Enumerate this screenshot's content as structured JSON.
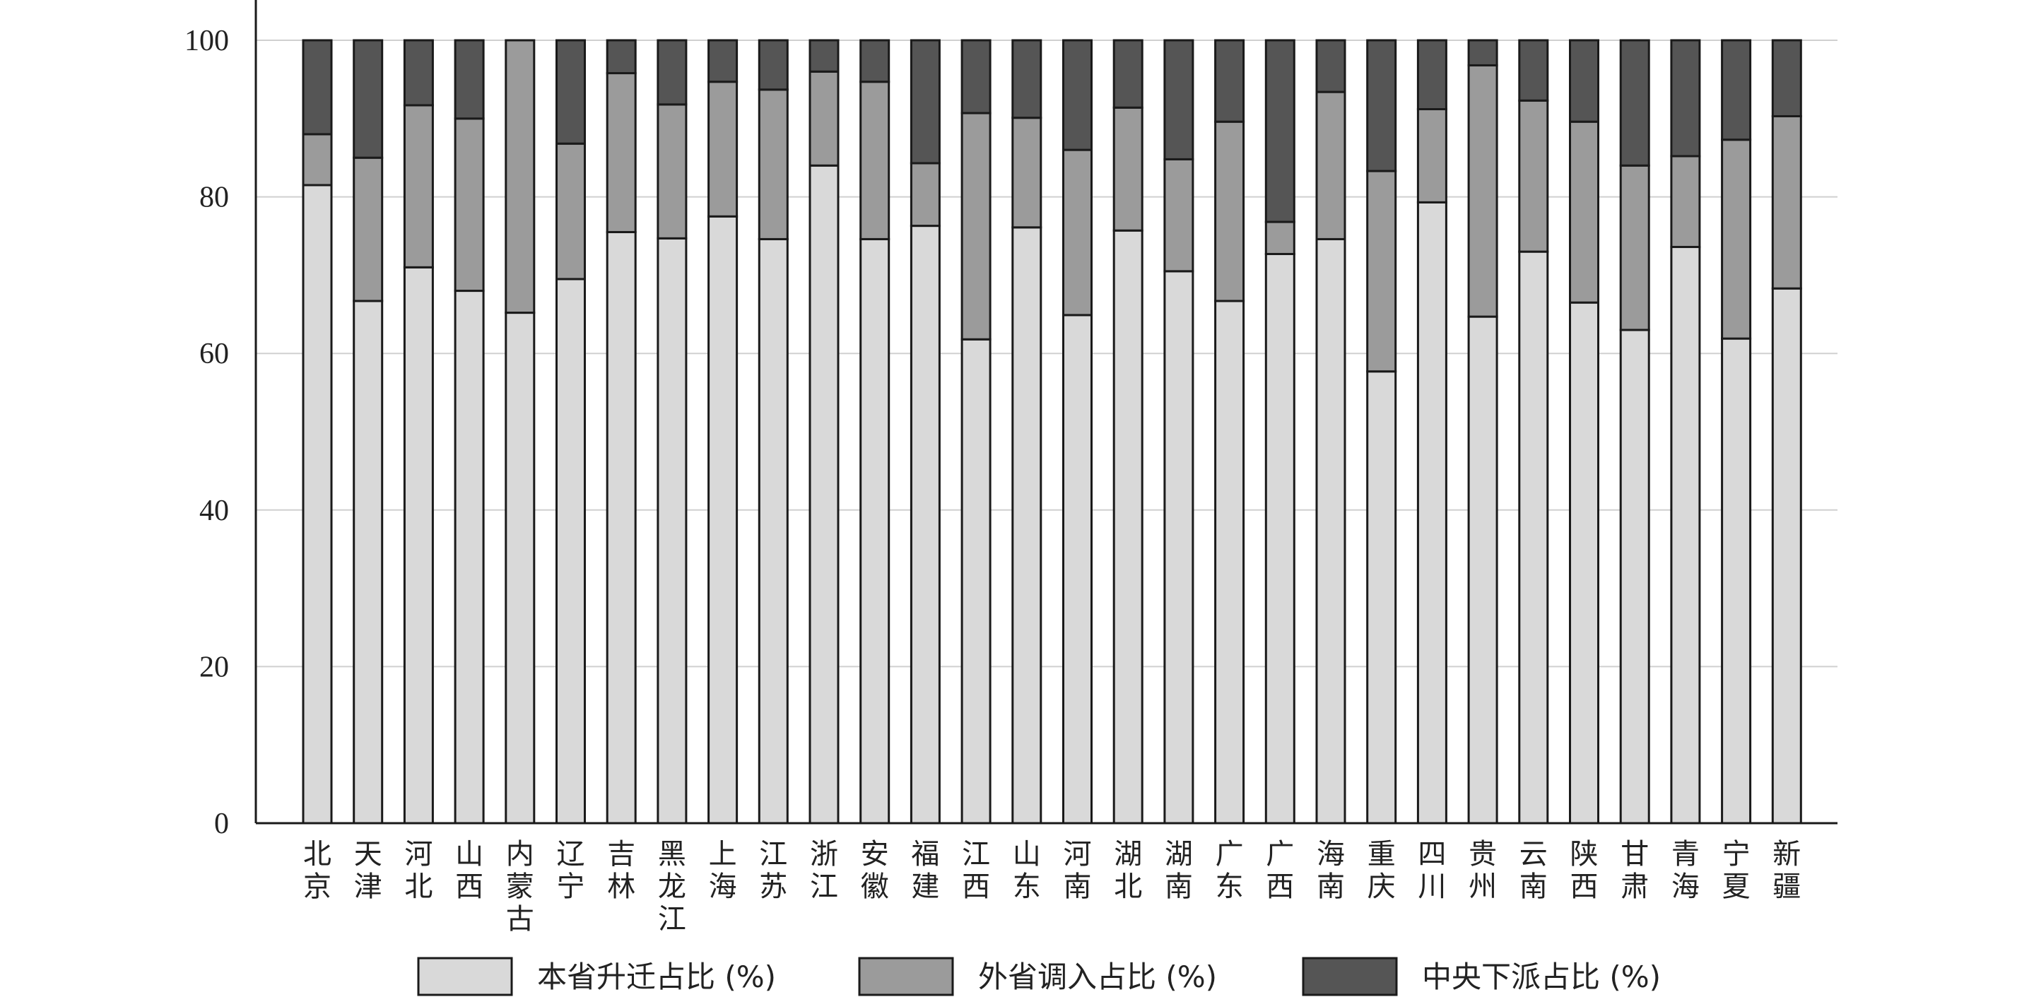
{
  "chart_data": {
    "type": "bar",
    "stacked": true,
    "title": "",
    "xlabel": "",
    "ylabel": "",
    "ylim": [
      0,
      100
    ],
    "yticks": [
      0,
      20,
      40,
      60,
      80,
      100
    ],
    "grid": true,
    "legend_position": "bottom",
    "categories": [
      "北京",
      "天津",
      "河北",
      "山西",
      "内蒙古",
      "辽宁",
      "吉林",
      "黑龙江",
      "上海",
      "江苏",
      "浙江",
      "安徽",
      "福建",
      "江西",
      "山东",
      "河南",
      "湖北",
      "湖南",
      "广东",
      "广西",
      "海南",
      "重庆",
      "四川",
      "贵州",
      "云南",
      "陕西",
      "甘肃",
      "青海",
      "宁夏",
      "新疆"
    ],
    "series": [
      {
        "name": "本省升迁占比 (%)",
        "color": "#d9d9d9",
        "values": [
          81.5,
          66.7,
          71,
          68,
          65.2,
          69.5,
          75.5,
          74.7,
          77.5,
          74.6,
          84,
          74.6,
          76.3,
          61.8,
          76.1,
          64.9,
          75.7,
          70.5,
          66.7,
          72.7,
          74.6,
          57.7,
          79.3,
          64.7,
          73,
          66.5,
          63,
          73.6,
          61.9,
          68.3
        ]
      },
      {
        "name": "外省调入占比 (%)",
        "color": "#9b9b9b",
        "values": [
          6.5,
          18.3,
          20.7,
          22,
          34.8,
          17.3,
          20.3,
          17.1,
          17.2,
          19.1,
          12,
          20.1,
          8,
          28.9,
          14,
          21.1,
          15.7,
          14.3,
          22.9,
          4.1,
          18.8,
          25.6,
          11.9,
          32.1,
          19.3,
          23.1,
          21,
          11.6,
          25.4,
          22
        ]
      },
      {
        "name": "中央下派占比 (%)",
        "color": "#555555",
        "values": [
          12,
          15,
          8.3,
          10,
          0,
          13.2,
          4.2,
          8.2,
          5.3,
          6.3,
          4,
          5.3,
          15.7,
          9.3,
          9.9,
          14,
          8.6,
          15.2,
          10.4,
          23.2,
          6.6,
          16.7,
          8.8,
          3.2,
          7.7,
          10.4,
          16,
          14.8,
          12.7,
          9.7
        ]
      }
    ]
  }
}
